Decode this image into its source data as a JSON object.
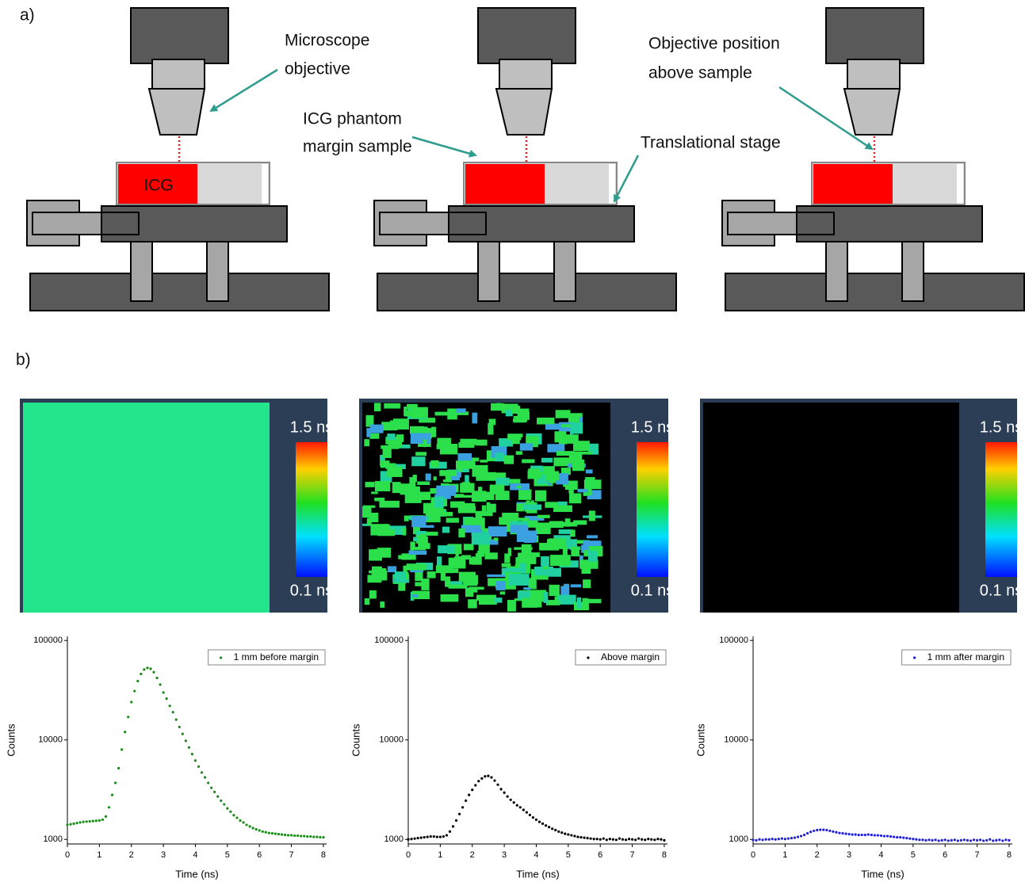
{
  "panel_labels": [
    "a)",
    "b)"
  ],
  "diagram_labels": {
    "icg": "ICG",
    "microscope": "Microscope",
    "objective": "objective",
    "phantom": "ICG phantom",
    "margin_sample": "margin sample",
    "stage": "Translational stage",
    "objective_position": "Objective position",
    "above_sample": "above sample"
  },
  "flim_panels": [
    {
      "max_label": "1.5 ns",
      "min_label": "0.1 ns"
    },
    {
      "max_label": "1.5 ns",
      "min_label": "0.1 ns"
    },
    {
      "max_label": "1.5 ns",
      "min_label": "0.1 ns"
    }
  ],
  "chart_data": [
    {
      "type": "scatter",
      "x_label": "Time (ns)",
      "y_label": "Counts",
      "log_y": true,
      "legend": "upper right",
      "xlim": [
        0,
        8.1
      ],
      "ylim": [
        900,
        110000
      ],
      "xticks": [
        0,
        1,
        2,
        3,
        4,
        5,
        6,
        7,
        8
      ],
      "yticks": [
        1000,
        10000,
        100000
      ],
      "x": [
        0,
        0.1,
        0.2,
        0.3,
        0.4,
        0.5,
        0.6,
        0.7,
        0.8,
        0.9,
        1,
        1.1,
        1.2,
        1.3,
        1.4,
        1.5,
        1.6,
        1.7,
        1.8,
        1.9,
        2,
        2.1,
        2.2,
        2.3,
        2.4,
        2.5,
        2.6,
        2.7,
        2.8,
        2.9,
        3,
        3.1,
        3.2,
        3.3,
        3.4,
        3.5,
        3.6,
        3.7,
        3.8,
        3.9,
        4,
        4.1,
        4.2,
        4.3,
        4.4,
        4.5,
        4.6,
        4.7,
        4.8,
        4.9,
        5,
        5.1,
        5.2,
        5.3,
        5.4,
        5.5,
        5.6,
        5.7,
        5.8,
        5.9,
        6,
        6.1,
        6.2,
        6.3,
        6.4,
        6.5,
        6.6,
        6.7,
        6.8,
        6.9,
        7,
        7.1,
        7.2,
        7.3,
        7.4,
        7.5,
        7.6,
        7.7,
        7.8,
        7.9,
        8
      ],
      "series": [
        {
          "name": "1 mm before margin",
          "color": "#1a8a1a",
          "values": [
            1400,
            1420,
            1440,
            1460,
            1480,
            1500,
            1510,
            1520,
            1530,
            1540,
            1550,
            1580,
            1700,
            2100,
            2800,
            3700,
            5200,
            8000,
            12000,
            17000,
            24000,
            31000,
            39000,
            46000,
            51000,
            53000,
            52000,
            48000,
            42000,
            36000,
            30000,
            26000,
            22000,
            19000,
            16000,
            13500,
            11500,
            9800,
            8400,
            7200,
            6200,
            5400,
            4700,
            4200,
            3700,
            3300,
            3000,
            2700,
            2450,
            2250,
            2050,
            1900,
            1750,
            1650,
            1550,
            1480,
            1400,
            1350,
            1300,
            1260,
            1230,
            1200,
            1180,
            1160,
            1150,
            1140,
            1130,
            1120,
            1110,
            1100,
            1100,
            1090,
            1090,
            1080,
            1080,
            1070,
            1070,
            1060,
            1060,
            1050,
            1050
          ]
        }
      ]
    },
    {
      "type": "scatter",
      "x_label": "Time (ns)",
      "y_label": "Counts",
      "log_y": true,
      "legend": "upper right",
      "xlim": [
        0,
        8.1
      ],
      "ylim": [
        900,
        110000
      ],
      "xticks": [
        0,
        1,
        2,
        3,
        4,
        5,
        6,
        7,
        8
      ],
      "yticks": [
        1000,
        10000,
        100000
      ],
      "x": [
        0,
        0.1,
        0.2,
        0.3,
        0.4,
        0.5,
        0.6,
        0.7,
        0.8,
        0.9,
        1,
        1.1,
        1.2,
        1.3,
        1.4,
        1.5,
        1.6,
        1.7,
        1.8,
        1.9,
        2,
        2.1,
        2.2,
        2.3,
        2.4,
        2.5,
        2.6,
        2.7,
        2.8,
        2.9,
        3,
        3.1,
        3.2,
        3.3,
        3.4,
        3.5,
        3.6,
        3.7,
        3.8,
        3.9,
        4,
        4.1,
        4.2,
        4.3,
        4.4,
        4.5,
        4.6,
        4.7,
        4.8,
        4.9,
        5,
        5.1,
        5.2,
        5.3,
        5.4,
        5.5,
        5.6,
        5.7,
        5.8,
        5.9,
        6,
        6.1,
        6.2,
        6.3,
        6.4,
        6.5,
        6.6,
        6.7,
        6.8,
        6.9,
        7,
        7.1,
        7.2,
        7.3,
        7.4,
        7.5,
        7.6,
        7.7,
        7.8,
        7.9,
        8
      ],
      "series": [
        {
          "name": "Above margin",
          "color": "#000000",
          "values": [
            1000,
            1010,
            1020,
            1030,
            1040,
            1050,
            1060,
            1070,
            1070,
            1060,
            1060,
            1070,
            1100,
            1200,
            1350,
            1550,
            1800,
            2100,
            2450,
            2800,
            3150,
            3500,
            3850,
            4100,
            4300,
            4350,
            4200,
            3900,
            3550,
            3200,
            2950,
            2700,
            2500,
            2350,
            2200,
            2100,
            1980,
            1870,
            1760,
            1660,
            1580,
            1500,
            1440,
            1380,
            1330,
            1280,
            1240,
            1200,
            1170,
            1140,
            1120,
            1100,
            1080,
            1060,
            1050,
            1040,
            1030,
            1020,
            1010,
            1010,
            1000,
            1020,
            990,
            1010,
            1000,
            990,
            1020,
            1000,
            990,
            1010,
            1000,
            990,
            1020,
            1000,
            990,
            1010,
            1000,
            990,
            1010,
            1000,
            980
          ]
        }
      ]
    },
    {
      "type": "scatter",
      "x_label": "Time (ns)",
      "y_label": "Counts",
      "log_y": true,
      "legend": "upper right",
      "xlim": [
        0,
        8.1
      ],
      "ylim": [
        900,
        110000
      ],
      "xticks": [
        0,
        1,
        2,
        3,
        4,
        5,
        6,
        7,
        8
      ],
      "yticks": [
        1000,
        10000,
        100000
      ],
      "x": [
        0,
        0.1,
        0.2,
        0.3,
        0.4,
        0.5,
        0.6,
        0.7,
        0.8,
        0.9,
        1,
        1.1,
        1.2,
        1.3,
        1.4,
        1.5,
        1.6,
        1.7,
        1.8,
        1.9,
        2,
        2.1,
        2.2,
        2.3,
        2.4,
        2.5,
        2.6,
        2.7,
        2.8,
        2.9,
        3,
        3.1,
        3.2,
        3.3,
        3.4,
        3.5,
        3.6,
        3.7,
        3.8,
        3.9,
        4,
        4.1,
        4.2,
        4.3,
        4.4,
        4.5,
        4.6,
        4.7,
        4.8,
        4.9,
        5,
        5.1,
        5.2,
        5.3,
        5.4,
        5.5,
        5.6,
        5.7,
        5.8,
        5.9,
        6,
        6.1,
        6.2,
        6.3,
        6.4,
        6.5,
        6.6,
        6.7,
        6.8,
        6.9,
        7,
        7.1,
        7.2,
        7.3,
        7.4,
        7.5,
        7.6,
        7.7,
        7.8,
        7.9,
        8
      ],
      "series": [
        {
          "name": "1 mm after margin",
          "color": "#1f1fe0",
          "values": [
            990,
            980,
            1000,
            990,
            1000,
            1000,
            1010,
            1000,
            1010,
            1020,
            1010,
            1020,
            1030,
            1040,
            1060,
            1080,
            1110,
            1150,
            1190,
            1220,
            1240,
            1250,
            1250,
            1240,
            1220,
            1200,
            1180,
            1160,
            1150,
            1140,
            1130,
            1120,
            1120,
            1110,
            1110,
            1110,
            1120,
            1110,
            1100,
            1100,
            1090,
            1080,
            1080,
            1070,
            1060,
            1050,
            1050,
            1040,
            1030,
            1020,
            1010,
            1000,
            990,
            990,
            980,
            990,
            980,
            990,
            970,
            980,
            990,
            970,
            980,
            990,
            970,
            980,
            990,
            980,
            970,
            990,
            980,
            990,
            970,
            980,
            1000,
            970,
            980,
            990,
            970,
            990,
            980
          ]
        }
      ]
    }
  ]
}
